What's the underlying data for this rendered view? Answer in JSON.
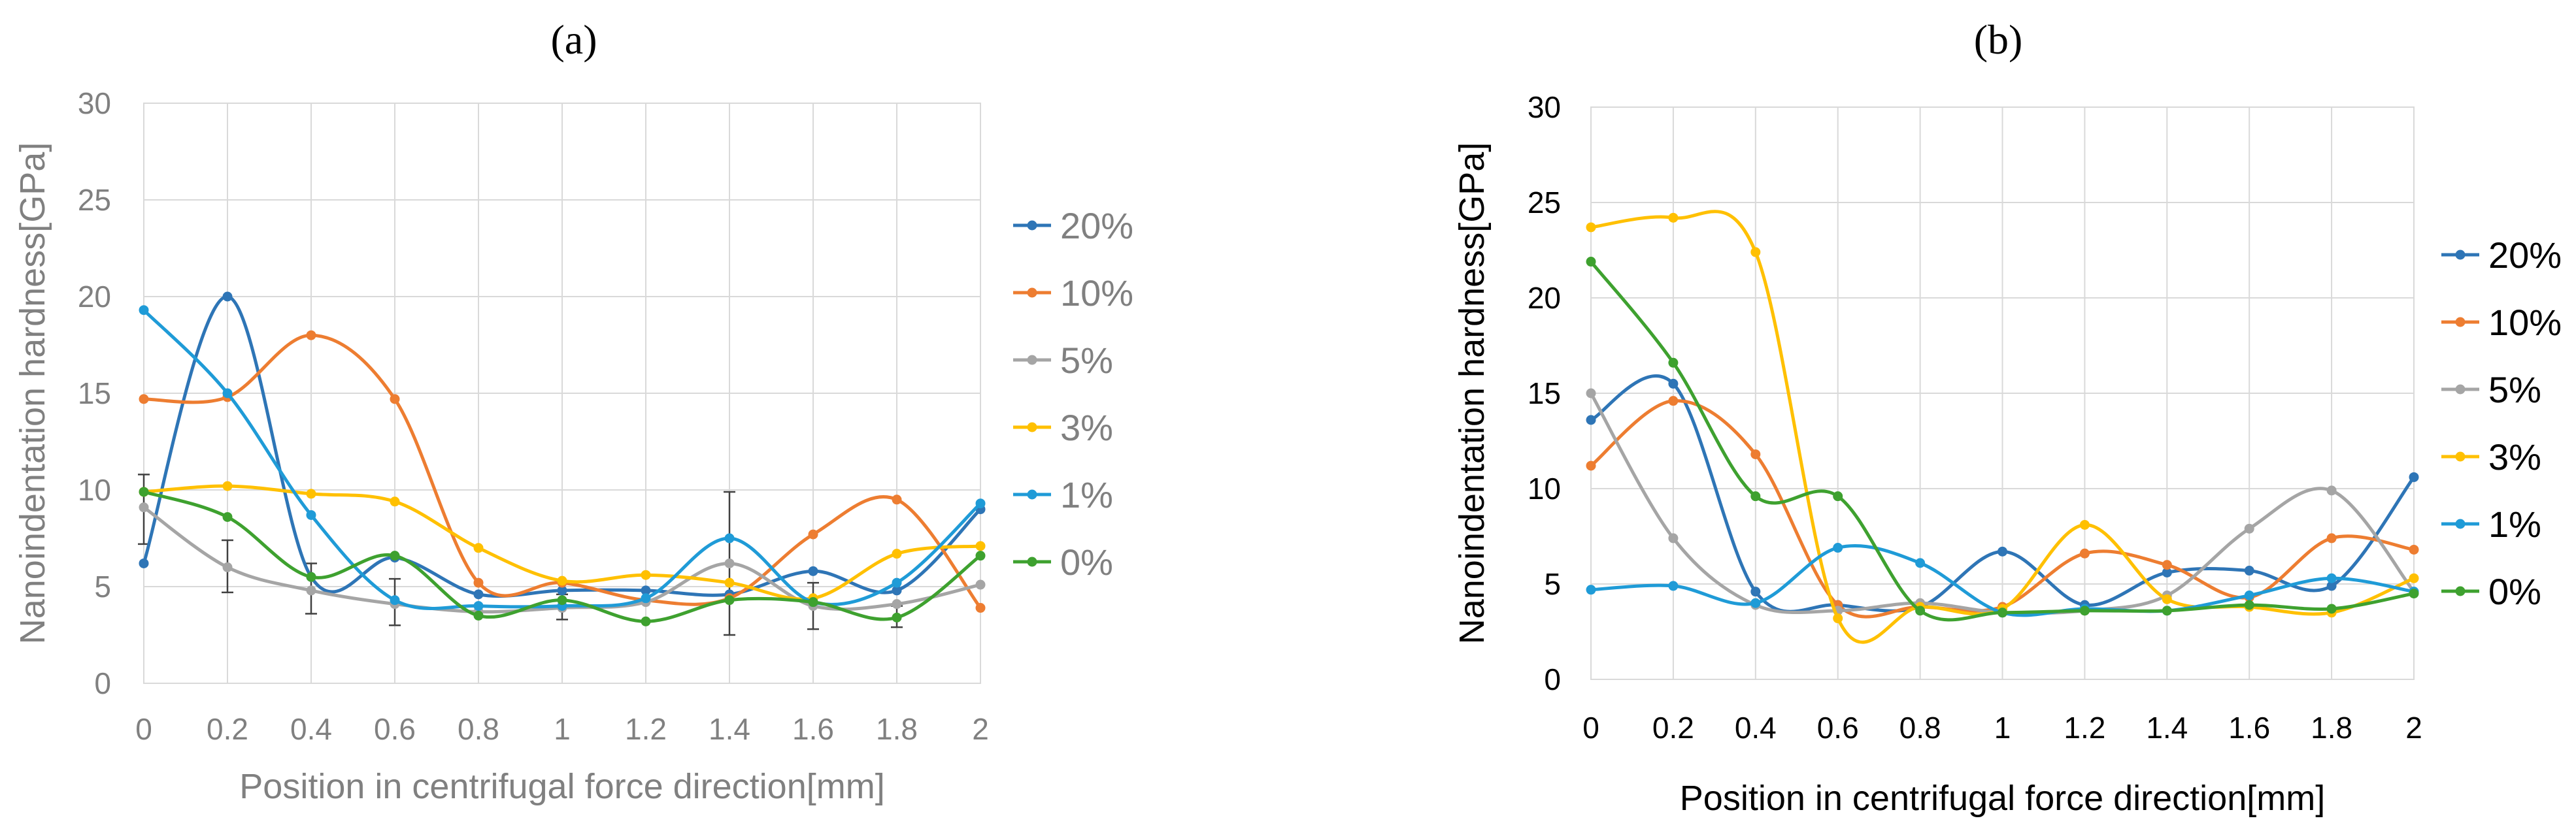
{
  "chart_data": [
    {
      "id": "a",
      "type": "line",
      "title": "(a)",
      "xlabel": "Position in centrifugal force direction[mm]",
      "ylabel": "Nanoindentation hardness[GPa]",
      "xlim": [
        0,
        2
      ],
      "ylim": [
        0,
        30
      ],
      "x_ticks": [
        "0",
        "0.2",
        "0.4",
        "0.6",
        "0.8",
        "1",
        "1.2",
        "1.4",
        "1.6",
        "1.8",
        "2"
      ],
      "y_ticks": [
        "0",
        "5",
        "10",
        "15",
        "20",
        "25",
        "30"
      ],
      "grid": true,
      "legend_position": "right",
      "text_color": "#808080",
      "x": [
        0,
        0.2,
        0.4,
        0.6,
        0.8,
        1.0,
        1.2,
        1.4,
        1.6,
        1.8,
        2.0
      ],
      "series": [
        {
          "name": "20%",
          "color": "#2E75B6",
          "values": [
            6.2,
            20.0,
            5.5,
            6.5,
            4.6,
            4.8,
            4.8,
            4.6,
            5.8,
            4.8,
            9.0
          ]
        },
        {
          "name": "10%",
          "color": "#ED7D31",
          "values": [
            14.7,
            14.8,
            18.0,
            14.7,
            5.2,
            5.2,
            4.3,
            4.4,
            7.7,
            9.5,
            3.9
          ]
        },
        {
          "name": "5%",
          "color": "#A5A5A5",
          "values": [
            9.1,
            6.0,
            4.8,
            4.1,
            3.7,
            3.9,
            4.2,
            6.2,
            4.0,
            4.1,
            5.1
          ]
        },
        {
          "name": "3%",
          "color": "#FFC000",
          "values": [
            9.9,
            10.2,
            9.8,
            9.4,
            7.0,
            5.3,
            5.6,
            5.2,
            4.4,
            6.7,
            7.1
          ]
        },
        {
          "name": "1%",
          "color": "#1F9BD7",
          "values": [
            19.3,
            15.0,
            8.7,
            4.3,
            4.0,
            4.0,
            4.4,
            7.5,
            4.2,
            5.2,
            9.3
          ]
        },
        {
          "name": "0%",
          "color": "#3EA12F",
          "values": [
            9.9,
            8.6,
            5.5,
            6.6,
            3.5,
            4.3,
            3.2,
            4.3,
            4.2,
            3.4,
            6.6
          ]
        }
      ],
      "error_bars": [
        {
          "x": 0,
          "low": 7.2,
          "high": 10.8
        },
        {
          "x": 0.2,
          "low": 4.7,
          "high": 7.4
        },
        {
          "x": 0.4,
          "low": 3.6,
          "high": 6.2
        },
        {
          "x": 0.6,
          "low": 3.0,
          "high": 5.4
        },
        {
          "x": 1.0,
          "low": 3.3,
          "high": 4.6
        },
        {
          "x": 1.4,
          "low": 2.5,
          "high": 9.9
        },
        {
          "x": 1.6,
          "low": 2.8,
          "high": 5.2
        },
        {
          "x": 1.8,
          "low": 2.9,
          "high": 4.0
        }
      ]
    },
    {
      "id": "b",
      "type": "line",
      "title": "(b)",
      "xlabel": "Position in centrifugal force direction[mm]",
      "ylabel": "Nanoindentation hardness[GPa]",
      "xlim": [
        0,
        2
      ],
      "ylim": [
        0,
        30
      ],
      "x_ticks": [
        "0",
        "0.2",
        "0.4",
        "0.6",
        "0.8",
        "1",
        "1.2",
        "1.4",
        "1.6",
        "1.8",
        "2"
      ],
      "y_ticks": [
        "0",
        "5",
        "10",
        "15",
        "20",
        "25",
        "30"
      ],
      "grid": true,
      "legend_position": "right",
      "text_color": "#000000",
      "x": [
        0,
        0.2,
        0.4,
        0.6,
        0.8,
        1.0,
        1.2,
        1.4,
        1.6,
        1.8,
        2.0
      ],
      "series": [
        {
          "name": "20%",
          "color": "#2E75B6",
          "values": [
            13.6,
            15.5,
            4.6,
            3.9,
            3.8,
            6.7,
            3.9,
            5.6,
            5.7,
            4.9,
            10.6
          ]
        },
        {
          "name": "10%",
          "color": "#ED7D31",
          "values": [
            11.2,
            14.6,
            11.8,
            3.9,
            3.8,
            3.8,
            6.6,
            6.0,
            4.3,
            7.4,
            6.8
          ]
        },
        {
          "name": "5%",
          "color": "#A5A5A5",
          "values": [
            15.0,
            7.4,
            3.9,
            3.6,
            4.0,
            3.5,
            3.6,
            4.4,
            7.9,
            9.9,
            4.6
          ]
        },
        {
          "name": "3%",
          "color": "#FFC000",
          "values": [
            23.7,
            24.2,
            22.4,
            3.2,
            3.8,
            3.7,
            8.1,
            4.2,
            3.8,
            3.5,
            5.3
          ]
        },
        {
          "name": "1%",
          "color": "#1F9BD7",
          "values": [
            4.7,
            4.9,
            4.0,
            6.9,
            6.1,
            3.5,
            3.7,
            3.6,
            4.4,
            5.3,
            4.6
          ]
        },
        {
          "name": "0%",
          "color": "#3EA12F",
          "values": [
            21.9,
            16.6,
            9.6,
            9.6,
            3.6,
            3.5,
            3.6,
            3.6,
            3.9,
            3.7,
            4.5
          ]
        }
      ]
    }
  ]
}
